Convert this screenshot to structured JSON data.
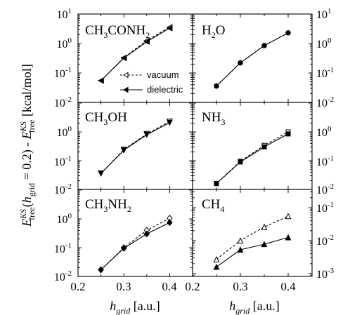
{
  "chart_data": [
    {
      "type": "line",
      "panel": "CH3CONH2",
      "label_main": "CH",
      "label_sub1": "3",
      "label_mid": "CONH",
      "label_sub2": "2",
      "yscale": "log",
      "ylim": [
        0.01,
        10
      ],
      "xlim": [
        0.2,
        0.45
      ],
      "legend": {
        "entries": [
          "vacuum",
          "dielectric"
        ],
        "placement": "bottom-right"
      },
      "series": [
        {
          "name": "vacuum",
          "marker": "left-triangle-open",
          "linestyle": "dashed",
          "x": [
            0.25,
            0.3,
            0.35,
            0.4
          ],
          "y": [
            0.055,
            0.33,
            1.25,
            3.6
          ]
        },
        {
          "name": "dielectric",
          "marker": "left-triangle-filled",
          "linestyle": "solid",
          "x": [
            0.25,
            0.3,
            0.35,
            0.4
          ],
          "y": [
            0.055,
            0.32,
            1.15,
            3.3
          ]
        }
      ]
    },
    {
      "type": "line",
      "panel": "H2O",
      "label_main": "H",
      "label_sub1": "2",
      "label_mid": "O",
      "label_sub2": "",
      "yscale": "log",
      "ylim": [
        0.01,
        10
      ],
      "xlim": [
        0.2,
        0.45
      ],
      "series": [
        {
          "marker": "circle-open",
          "linestyle": "dashed",
          "x": [
            0.25,
            0.3,
            0.35,
            0.4
          ],
          "y": [
            0.036,
            0.22,
            0.85,
            2.3
          ]
        },
        {
          "marker": "circle-filled",
          "linestyle": "solid",
          "x": [
            0.25,
            0.3,
            0.35,
            0.4
          ],
          "y": [
            0.036,
            0.22,
            0.85,
            2.3
          ]
        }
      ]
    },
    {
      "type": "line",
      "panel": "CH3OH",
      "label_main": "CH",
      "label_sub1": "3",
      "label_mid": "OH",
      "label_sub2": "",
      "yscale": "log",
      "ylim": [
        0.01,
        10
      ],
      "xlim": [
        0.2,
        0.45
      ],
      "series": [
        {
          "marker": "down-triangle-open",
          "linestyle": "dashed",
          "x": [
            0.25,
            0.3,
            0.35,
            0.4
          ],
          "y": [
            0.036,
            0.24,
            0.85,
            2.3
          ]
        },
        {
          "marker": "down-triangle-filled",
          "linestyle": "solid",
          "x": [
            0.25,
            0.3,
            0.35,
            0.4
          ],
          "y": [
            0.036,
            0.23,
            0.8,
            2.1
          ]
        }
      ]
    },
    {
      "type": "line",
      "panel": "NH3",
      "label_main": "NH",
      "label_sub1": "3",
      "label_mid": "",
      "label_sub2": "",
      "yscale": "log",
      "ylim": [
        0.01,
        10
      ],
      "xlim": [
        0.2,
        0.45
      ],
      "series": [
        {
          "marker": "square-open",
          "linestyle": "dashed",
          "x": [
            0.25,
            0.3,
            0.35,
            0.4
          ],
          "y": [
            0.016,
            0.095,
            0.34,
            1.0
          ]
        },
        {
          "marker": "square-filled",
          "linestyle": "solid",
          "x": [
            0.25,
            0.3,
            0.35,
            0.4
          ],
          "y": [
            0.016,
            0.09,
            0.3,
            0.85
          ]
        }
      ]
    },
    {
      "type": "line",
      "panel": "CH3NH2",
      "label_main": "CH",
      "label_sub1": "3",
      "label_mid": "NH",
      "label_sub2": "2",
      "yscale": "log",
      "ylim": [
        0.01,
        5
      ],
      "xlim": [
        0.2,
        0.45
      ],
      "series": [
        {
          "marker": "diamond-open",
          "linestyle": "dashed",
          "x": [
            0.25,
            0.3,
            0.35,
            0.4
          ],
          "y": [
            0.017,
            0.1,
            0.4,
            1.05
          ]
        },
        {
          "marker": "diamond-filled",
          "linestyle": "solid",
          "x": [
            0.25,
            0.3,
            0.35,
            0.4
          ],
          "y": [
            0.017,
            0.095,
            0.3,
            0.75
          ]
        }
      ]
    },
    {
      "type": "line",
      "panel": "CH4",
      "label_main": "CH",
      "label_sub1": "4",
      "label_mid": "",
      "label_sub2": "",
      "yscale": "log",
      "ylim": [
        0.0005,
        1
      ],
      "xlim": [
        0.2,
        0.45
      ],
      "series": [
        {
          "marker": "up-triangle-open",
          "linestyle": "dashed",
          "x": [
            0.25,
            0.3,
            0.35,
            0.4
          ],
          "y": [
            0.0027,
            0.01,
            0.026,
            0.055
          ]
        },
        {
          "marker": "up-triangle-filled",
          "linestyle": "solid",
          "x": [
            0.25,
            0.3,
            0.35,
            0.4
          ],
          "y": [
            0.0016,
            0.0053,
            0.0078,
            0.0125
          ]
        }
      ]
    }
  ],
  "axes": {
    "x_ticks": [
      "0.2",
      "0.3",
      "0.4"
    ],
    "y_ticks_left": [
      {
        "base": "10",
        "exp": "1"
      },
      {
        "base": "10",
        "exp": "0"
      },
      {
        "base": "10",
        "exp": "-1"
      },
      {
        "base": "10",
        "exp": "-2"
      },
      {
        "base": "10",
        "exp": "0"
      },
      {
        "base": "10",
        "exp": "-1"
      },
      {
        "base": "10",
        "exp": "-2"
      },
      {
        "base": "10",
        "exp": "0"
      },
      {
        "base": "10",
        "exp": "-1"
      },
      {
        "base": "10",
        "exp": "-2"
      }
    ],
    "y_ticks_right": [
      {
        "base": "10",
        "exp": "1"
      },
      {
        "base": "10",
        "exp": "0"
      },
      {
        "base": "10",
        "exp": "-1"
      },
      {
        "base": "10",
        "exp": "-2"
      },
      {
        "base": "10",
        "exp": "0"
      },
      {
        "base": "10",
        "exp": "-1"
      },
      {
        "base": "10",
        "exp": "-2"
      },
      {
        "base": "10",
        "exp": "-1"
      },
      {
        "base": "10",
        "exp": "-2"
      },
      {
        "base": "10",
        "exp": "-3"
      }
    ],
    "xlabel": {
      "main": "h",
      "sub": "grid",
      "rest": " [a.u.]"
    },
    "ylabel": {
      "E1": "E",
      "E1_sup": "KS",
      "E1_sub": "free",
      "mid1": "(",
      "h": "h",
      "h_sub": "grid",
      "mid2": " = 0.2) - ",
      "E2": "E",
      "E2_sup": "KS",
      "E2_sub": "free",
      "unit": " [kcal/mol]"
    }
  }
}
